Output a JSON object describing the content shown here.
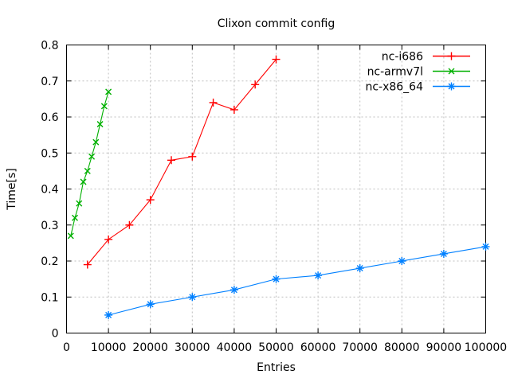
{
  "window": {
    "title": "Clixon commit config"
  },
  "chart_data": {
    "type": "line",
    "title": "Clixon commit config",
    "xlabel": "Entries",
    "ylabel": "Time[s]",
    "xlim": [
      0,
      100000
    ],
    "ylim": [
      0,
      0.8
    ],
    "xtick_step": 10000,
    "ytick_step": 0.1,
    "grid": true,
    "grid_style": "dashed",
    "legend_position": "top-right-inside",
    "colors": {
      "background": "#ffffff",
      "axis": "#000000",
      "grid": "#bfbfbf",
      "text": "#000000"
    },
    "series": [
      {
        "name": "nc-i686",
        "color": "#ff0000",
        "marker": "plus",
        "x": [
          5000,
          10000,
          15000,
          20000,
          25000,
          30000,
          35000,
          40000,
          45000,
          50000
        ],
        "y": [
          0.19,
          0.26,
          0.3,
          0.37,
          0.48,
          0.49,
          0.64,
          0.62,
          0.69,
          0.76
        ]
      },
      {
        "name": "nc-armv7l",
        "color": "#00b000",
        "marker": "cross",
        "x": [
          1000,
          2000,
          3000,
          4000,
          5000,
          6000,
          7000,
          8000,
          9000,
          10000
        ],
        "y": [
          0.27,
          0.32,
          0.36,
          0.42,
          0.45,
          0.49,
          0.53,
          0.58,
          0.63,
          0.67
        ]
      },
      {
        "name": "nc-x86_64",
        "color": "#0080ff",
        "marker": "star",
        "x": [
          10000,
          20000,
          30000,
          40000,
          50000,
          60000,
          70000,
          80000,
          90000,
          100000
        ],
        "y": [
          0.05,
          0.08,
          0.1,
          0.12,
          0.15,
          0.16,
          0.18,
          0.2,
          0.22,
          0.24
        ]
      }
    ]
  }
}
